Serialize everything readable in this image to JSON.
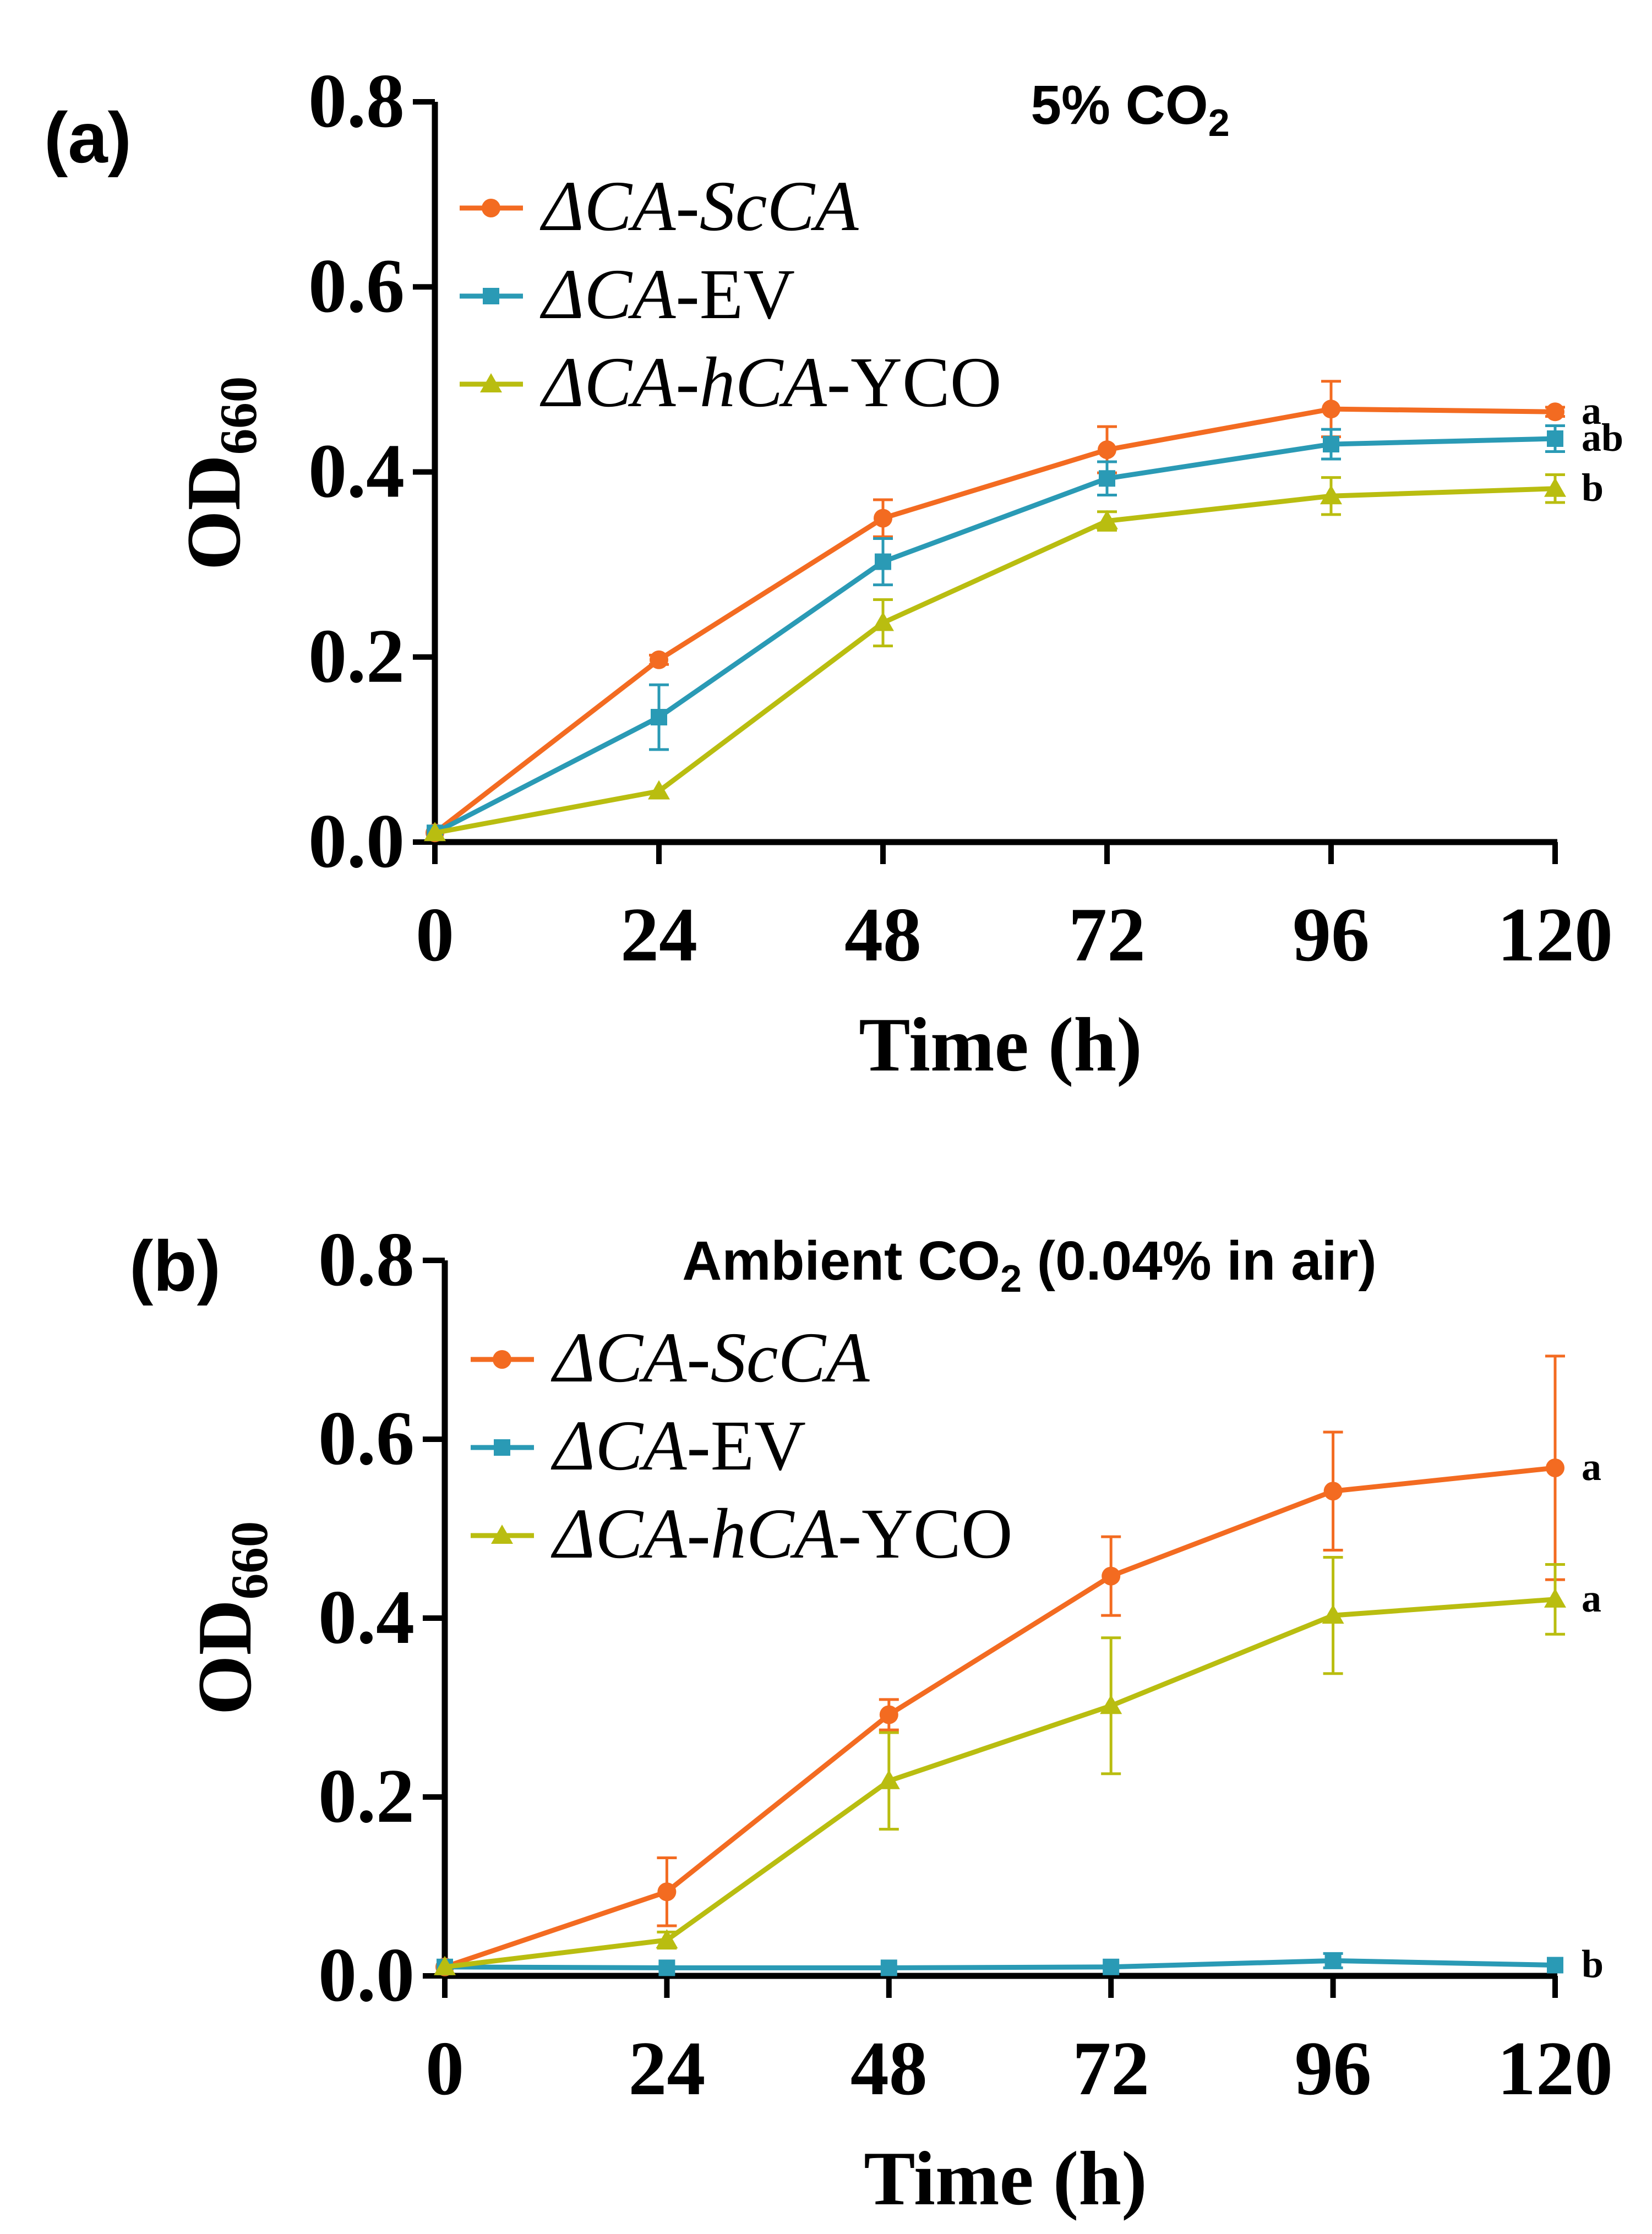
{
  "colors": {
    "scca": "#f36b21",
    "ev": "#2a9ab5",
    "hca": "#b9bd10",
    "axis": "#000000"
  },
  "legend_labels": [
    {
      "prefix": "ΔCA-ScCA",
      "suffix": ""
    },
    {
      "prefix": "ΔCA",
      "suffix": "-EV"
    },
    {
      "prefix": "ΔCA-hCA",
      "suffix": "-YCO"
    }
  ],
  "chart_data": [
    {
      "type": "line",
      "panel_label": "(a)",
      "title": "5% CO",
      "title_sub": "2",
      "title_tail": "",
      "xlabel": "Time (h)",
      "ylabel": "OD",
      "ylabel_sub": "660",
      "x": [
        0,
        24,
        48,
        72,
        96,
        120
      ],
      "xlim": [
        0,
        120
      ],
      "ylim": [
        0,
        0.8
      ],
      "xticks": [
        "0",
        "24",
        "48",
        "72",
        "96",
        "120"
      ],
      "yticks": [
        "0.0",
        "0.2",
        "0.4",
        "0.6",
        "0.8"
      ],
      "series": [
        {
          "name": "ΔCA-ScCA",
          "marker": "circle",
          "color": "#f36b21",
          "values": [
            0.01,
            0.197,
            0.35,
            0.424,
            0.468,
            0.465
          ],
          "errors": [
            0.003,
            0.005,
            0.02,
            0.025,
            0.03,
            0.005
          ],
          "letter": "a"
        },
        {
          "name": "ΔCA-EV",
          "marker": "square",
          "color": "#2a9ab5",
          "values": [
            0.01,
            0.135,
            0.303,
            0.393,
            0.43,
            0.436
          ],
          "errors": [
            0.003,
            0.035,
            0.025,
            0.018,
            0.016,
            0.014
          ],
          "letter": "ab"
        },
        {
          "name": "ΔCA-hCA-YCO",
          "marker": "triangle",
          "color": "#b9bd10",
          "values": [
            0.01,
            0.055,
            0.237,
            0.347,
            0.374,
            0.382
          ],
          "errors": [
            0.003,
            0.004,
            0.025,
            0.01,
            0.02,
            0.015
          ],
          "letter": "b"
        }
      ]
    },
    {
      "type": "line",
      "panel_label": "(b)",
      "title": "Ambient CO",
      "title_sub": "2",
      "title_tail": " (0.04% in air)",
      "xlabel": "Time (h)",
      "ylabel": "OD",
      "ylabel_sub": "660",
      "x": [
        0,
        24,
        48,
        72,
        96,
        120
      ],
      "xlim": [
        0,
        120
      ],
      "ylim": [
        0,
        0.8
      ],
      "xticks": [
        "0",
        "24",
        "48",
        "72",
        "96",
        "120"
      ],
      "yticks": [
        "0.0",
        "0.2",
        "0.4",
        "0.6",
        "0.8"
      ],
      "series": [
        {
          "name": "ΔCA-ScCA",
          "marker": "circle",
          "color": "#f36b21",
          "values": [
            0.01,
            0.094,
            0.292,
            0.447,
            0.542,
            0.568
          ],
          "errors": [
            0.003,
            0.038,
            0.017,
            0.044,
            0.066,
            0.125
          ],
          "letter": "a"
        },
        {
          "name": "ΔCA-EV",
          "marker": "square",
          "color": "#2a9ab5",
          "values": [
            0.01,
            0.009,
            0.009,
            0.01,
            0.017,
            0.012
          ],
          "errors": [
            0.002,
            0.002,
            0.002,
            0.002,
            0.008,
            0.003
          ],
          "letter": "b"
        },
        {
          "name": "ΔCA-hCA-YCO",
          "marker": "triangle",
          "color": "#b9bd10",
          "values": [
            0.01,
            0.04,
            0.218,
            0.302,
            0.403,
            0.421
          ],
          "errors": [
            0.003,
            0.009,
            0.054,
            0.076,
            0.065,
            0.039
          ],
          "letter": "a"
        }
      ]
    }
  ]
}
